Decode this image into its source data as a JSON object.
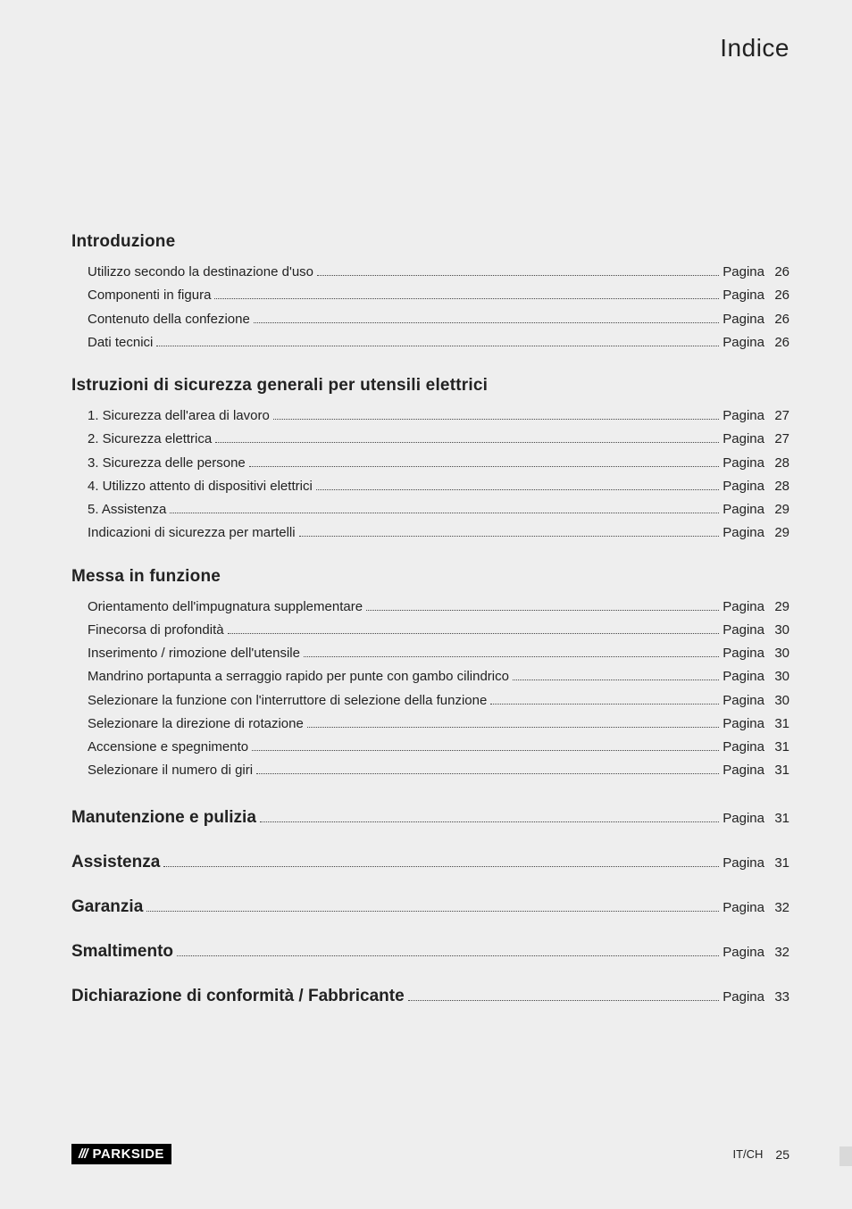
{
  "header": {
    "title": "Indice"
  },
  "page_word": "Pagina",
  "sections": [
    {
      "heading": "Introduzione",
      "items": [
        {
          "label": "Utilizzo secondo la destinazione d'uso",
          "page": "26"
        },
        {
          "label": "Componenti in figura",
          "page": "26"
        },
        {
          "label": "Contenuto della confezione",
          "page": "26"
        },
        {
          "label": "Dati tecnici",
          "page": "26"
        }
      ]
    },
    {
      "heading": "Istruzioni di sicurezza generali per utensili elettrici",
      "items": [
        {
          "label": "1. Sicurezza dell'area di lavoro",
          "page": "27"
        },
        {
          "label": "2. Sicurezza elettrica",
          "page": "27"
        },
        {
          "label": "3. Sicurezza delle persone",
          "page": "28"
        },
        {
          "label": "4. Utilizzo attento di dispositivi elettrici",
          "page": "28"
        },
        {
          "label": "5. Assistenza",
          "page": "29"
        },
        {
          "label": "Indicazioni di sicurezza per martelli",
          "page": "29"
        }
      ]
    },
    {
      "heading": "Messa in funzione",
      "items": [
        {
          "label": "Orientamento dell'impugnatura supplementare",
          "page": "29"
        },
        {
          "label": "Finecorsa di profondità",
          "page": "30"
        },
        {
          "label": "Inserimento / rimozione dell'utensile",
          "page": "30"
        },
        {
          "label": "Mandrino portapunta a serraggio rapido per punte con gambo cilindrico",
          "page": "30"
        },
        {
          "label": "Selezionare la funzione con l'interruttore di selezione della funzione",
          "page": "30"
        },
        {
          "label": "Selezionare la direzione di rotazione",
          "page": "31"
        },
        {
          "label": "Accensione e spegnimento",
          "page": "31"
        },
        {
          "label": "Selezionare il numero di giri",
          "page": "31"
        }
      ]
    }
  ],
  "inline_sections": [
    {
      "heading": "Manutenzione e pulizia",
      "page": "31"
    },
    {
      "heading": "Assistenza",
      "page": "31"
    },
    {
      "heading": "Garanzia",
      "page": "32"
    },
    {
      "heading": "Smaltimento",
      "page": "32"
    },
    {
      "heading": "Dichiarazione di conformità / Fabbricante",
      "page": "33"
    }
  ],
  "footer": {
    "brand": "PARKSIDE",
    "lang": "IT/CH",
    "page_number": "25"
  },
  "colors": {
    "background": "#eeeeee",
    "text": "#222222",
    "logo_bg": "#000000",
    "logo_fg": "#ffffff",
    "edge_mark": "#d9d9d9"
  },
  "typography": {
    "header_title_size_pt": 21,
    "section_heading_size_pt": 14,
    "body_size_pt": 11,
    "footer_size_pt": 10
  }
}
